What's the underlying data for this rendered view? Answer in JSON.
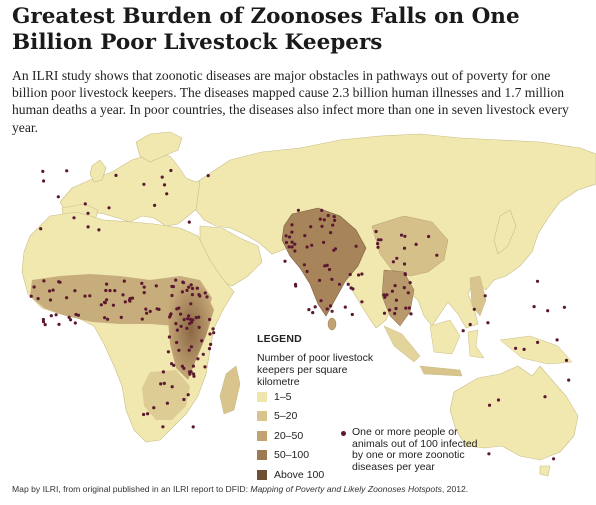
{
  "title": "Greatest Burden of Zoonoses Falls on One Billion Poor Livestock Keepers",
  "subtitle": "An ILRI study shows that zoonotic diseases are major obstacles in pathways out of poverty for one billion poor livestock keepers. The diseases mapped cause 2.3 billion human illnesses and 1.7 million human deaths a year. In poor countries, the diseases also infect more than one in seven livestock every year.",
  "legend": {
    "heading": "LEGEND",
    "description": "Number of poor livestock keepers per square kilometre",
    "classes": [
      {
        "label": "1–5",
        "color": "#efe6ad"
      },
      {
        "label": "5–20",
        "color": "#d8c48c"
      },
      {
        "label": "20–50",
        "color": "#c0a273"
      },
      {
        "label": "50–100",
        "color": "#9d7b52"
      },
      {
        "label": "Above 100",
        "color": "#6e4f33"
      }
    ],
    "dot_label": "One or more people or animals out of 100 infected by one or more zoonotic diseases per year",
    "dot_color": "#5b1830"
  },
  "credit": {
    "prefix": "Map by ILRI, from original published in an ILRI report to DFID: ",
    "report": "Mapping of Poverty and Likely Zoonoses Hotspots",
    "suffix": ", 2012."
  },
  "colors": {
    "ocean": "#ffffff",
    "land": "#f1e8b0",
    "border": "#c9bd86"
  }
}
